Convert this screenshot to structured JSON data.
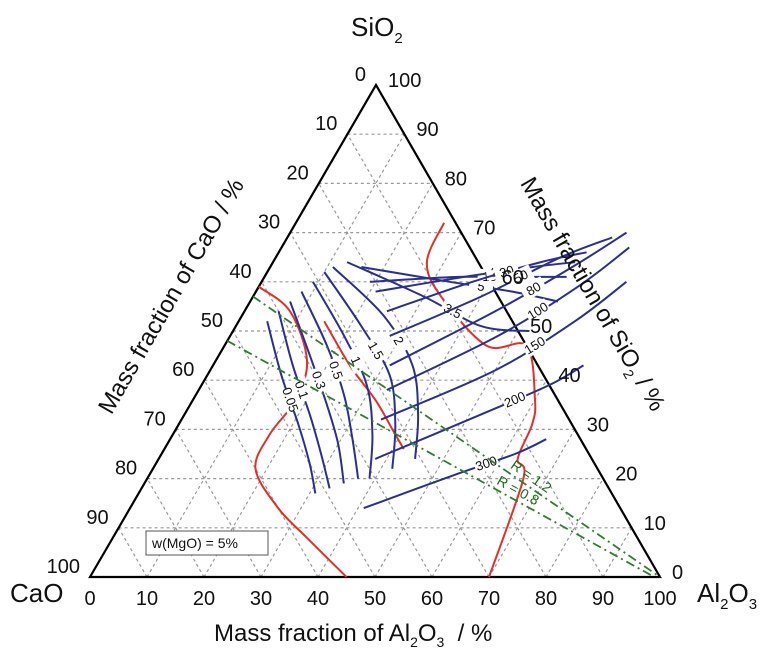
{
  "chart_data": {
    "type": "ternary",
    "vertices": {
      "top": "SiO",
      "top_sub": "2",
      "left": "CaO",
      "right": "Al",
      "right_sub": "2",
      "right_tail": "O",
      "right_sub2": "3"
    },
    "axes": {
      "bottom": {
        "title_pre": "Mass fraction of Al",
        "title_sub1": "2",
        "title_mid": "O",
        "title_sub2": "3",
        "title_post": "  / %",
        "ticks": [
          "0",
          "10",
          "20",
          "30",
          "40",
          "50",
          "60",
          "70",
          "80",
          "90",
          "100"
        ]
      },
      "left": {
        "title": "Mass fraction of CaO / %",
        "ticks": [
          "0",
          "10",
          "20",
          "30",
          "40",
          "50",
          "60",
          "70",
          "80",
          "90",
          "100"
        ]
      },
      "right": {
        "title_pre": "Mass fraction of SiO",
        "title_sub": "2",
        "title_post": " / %",
        "ticks": [
          "0",
          "10",
          "20",
          "30",
          "40",
          "50",
          "60",
          "70",
          "80",
          "90",
          "100"
        ]
      }
    },
    "grid": true,
    "note": "w(MgO) = 5%",
    "isolines": [
      {
        "label": "0.05",
        "points": [
          [
            5,
            52
          ],
          [
            13,
            41
          ],
          [
            21,
            31
          ],
          [
            27,
            23
          ],
          [
            31,
            17
          ]
        ]
      },
      {
        "label": "0.1",
        "points": [
          [
            6,
            54
          ],
          [
            14,
            43
          ],
          [
            22,
            33
          ],
          [
            28,
            25
          ],
          [
            33,
            18
          ]
        ]
      },
      {
        "label": "0.3",
        "points": [
          [
            7,
            56
          ],
          [
            16,
            45
          ],
          [
            24,
            35
          ],
          [
            30,
            27
          ],
          [
            35,
            19
          ]
        ]
      },
      {
        "label": "0.5",
        "points": [
          [
            8,
            58
          ],
          [
            18,
            47
          ],
          [
            26,
            37
          ],
          [
            32,
            28
          ],
          [
            37,
            20
          ]
        ]
      },
      {
        "label": "1",
        "points": [
          [
            9,
            60
          ],
          [
            20,
            49
          ],
          [
            29,
            39
          ],
          [
            35,
            29
          ],
          [
            39,
            20
          ]
        ]
      },
      {
        "label": "1.5",
        "points": [
          [
            10,
            62
          ],
          [
            22,
            51
          ],
          [
            32,
            41
          ],
          [
            38,
            31
          ],
          [
            42,
            22
          ]
        ]
      },
      {
        "label": "2",
        "points": [
          [
            11,
            63
          ],
          [
            25,
            53
          ],
          [
            35,
            43
          ],
          [
            41,
            33
          ],
          [
            45,
            24
          ]
        ]
      },
      {
        "label": "3.5",
        "points": [
          [
            13,
            64
          ],
          [
            30,
            57
          ],
          [
            43,
            51
          ],
          [
            52,
            50
          ]
        ]
      },
      {
        "label": "5",
        "points": [
          [
            16,
            63
          ],
          [
            33,
            60
          ],
          [
            45,
            58
          ],
          [
            54,
            56
          ]
        ]
      },
      {
        "label": "10",
        "points": [
          [
            19,
            60
          ],
          [
            34,
            61
          ],
          [
            45,
            61
          ],
          [
            53,
            61
          ]
        ]
      },
      {
        "label": "20",
        "points": [
          [
            21,
            58
          ],
          [
            35,
            61
          ],
          [
            46,
            63
          ],
          [
            53,
            64
          ]
        ]
      },
      {
        "label": "30",
        "points": [
          [
            25,
            54
          ],
          [
            37,
            60
          ],
          [
            47,
            64
          ],
          [
            54,
            66
          ]
        ]
      },
      {
        "label": "50",
        "points": [
          [
            28,
            49
          ],
          [
            40,
            57
          ],
          [
            50,
            65
          ],
          [
            57,
            69
          ]
        ]
      },
      {
        "label": "80",
        "points": [
          [
            31,
            43
          ],
          [
            44,
            54
          ],
          [
            53,
            63
          ],
          [
            59,
            70
          ]
        ]
      },
      {
        "label": "100",
        "points": [
          [
            33,
            38
          ],
          [
            47,
            49
          ],
          [
            56,
            59
          ],
          [
            61,
            67
          ]
        ]
      },
      {
        "label": "150",
        "points": [
          [
            35,
            32
          ],
          [
            50,
            42
          ],
          [
            59,
            52
          ],
          [
            64,
            60
          ]
        ]
      },
      {
        "label": "200",
        "points": [
          [
            38,
            24
          ],
          [
            52,
            33
          ],
          [
            61,
            39
          ],
          [
            65,
            43
          ]
        ]
      },
      {
        "label": "300",
        "points": [
          [
            41,
            14
          ],
          [
            54,
            21
          ],
          [
            62,
            25
          ],
          [
            66,
            28
          ]
        ]
      }
    ],
    "boundaries": [
      {
        "points": [
          [
            15,
            52
          ],
          [
            24,
            43
          ],
          [
            32,
            36
          ],
          [
            38,
            30
          ],
          [
            42,
            26
          ]
        ]
      },
      {
        "points": [
          [
            0,
            59
          ],
          [
            8,
            54
          ],
          [
            16,
            44
          ],
          [
            18,
            36
          ],
          [
            17,
            29
          ],
          [
            18,
            22
          ],
          [
            26,
            14
          ],
          [
            34,
            8
          ],
          [
            45,
            0
          ]
        ]
      },
      {
        "points": [
          [
            26,
            72
          ],
          [
            27,
            64
          ],
          [
            33,
            57
          ],
          [
            46,
            47
          ],
          [
            53,
            47
          ],
          [
            60,
            36
          ],
          [
            62,
            31
          ],
          [
            63,
            24
          ],
          [
            66,
            20
          ],
          [
            70,
            0
          ]
        ]
      }
    ],
    "ratio_lines": [
      {
        "label": "R = 0.8",
        "points": [
          [
            0,
            48
          ],
          [
            99,
            0
          ]
        ]
      },
      {
        "label": "R = 1.2",
        "points": [
          [
            0,
            57
          ],
          [
            100,
            0
          ]
        ]
      }
    ]
  }
}
